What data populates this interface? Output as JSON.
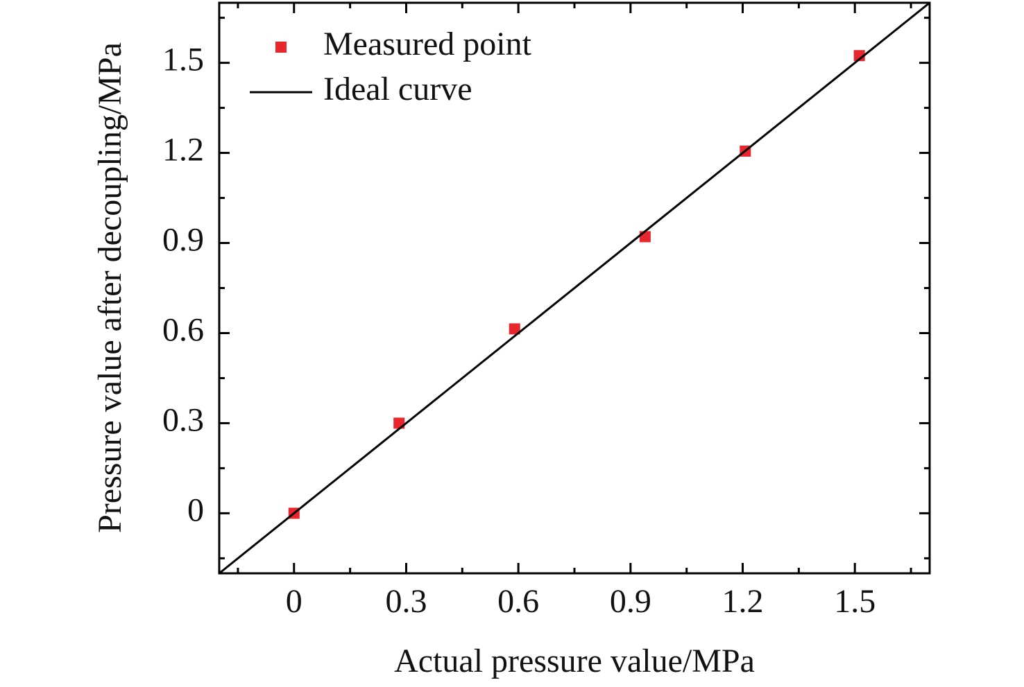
{
  "chart_data": {
    "type": "scatter",
    "x_label": "Actual pressure value/MPa",
    "y_label": "Pressure value after decoupling/MPa",
    "xlim": [
      -0.2,
      1.7
    ],
    "ylim": [
      -0.2,
      1.7
    ],
    "xticks": [
      0,
      0.3,
      0.6,
      0.9,
      1.2,
      1.5
    ],
    "yticks": [
      0,
      0.3,
      0.6,
      0.9,
      1.2,
      1.5
    ],
    "legend": "upper left",
    "series": [
      {
        "name": "Measured point",
        "type": "scatter",
        "color": "#e8262d",
        "x": [
          0,
          0.281,
          0.59,
          0.939,
          1.207,
          1.512
        ],
        "values": [
          0,
          0.3,
          0.614,
          0.921,
          1.206,
          1.524
        ]
      },
      {
        "name": "Ideal curve",
        "type": "line",
        "color": "#000000",
        "x": [
          -0.2,
          1.7
        ],
        "values": [
          -0.2,
          1.7
        ]
      }
    ]
  }
}
